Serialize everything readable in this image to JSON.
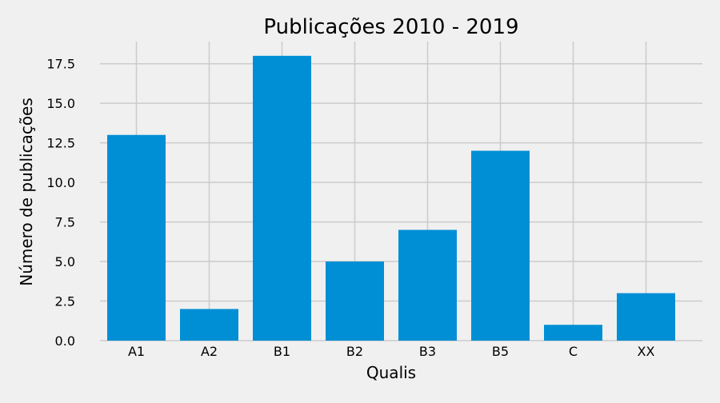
{
  "chart_data": {
    "type": "bar",
    "title": "Publicações 2010 - 2019",
    "xlabel": "Qualis",
    "ylabel": "Número de publicações",
    "categories": [
      "A1",
      "A2",
      "B1",
      "B2",
      "B3",
      "B5",
      "C",
      "XX"
    ],
    "values": [
      13,
      2,
      18,
      5,
      7,
      12,
      1,
      3
    ],
    "ylim": [
      0,
      18.9
    ],
    "yticks": [
      "0.0",
      "2.5",
      "5.0",
      "7.5",
      "10.0",
      "12.5",
      "15.0",
      "17.5"
    ],
    "grid": true,
    "legend": "none",
    "colors": {
      "bar": "#008fd5",
      "background": "#f0f0f0",
      "grid": "#cbcbcb"
    }
  }
}
